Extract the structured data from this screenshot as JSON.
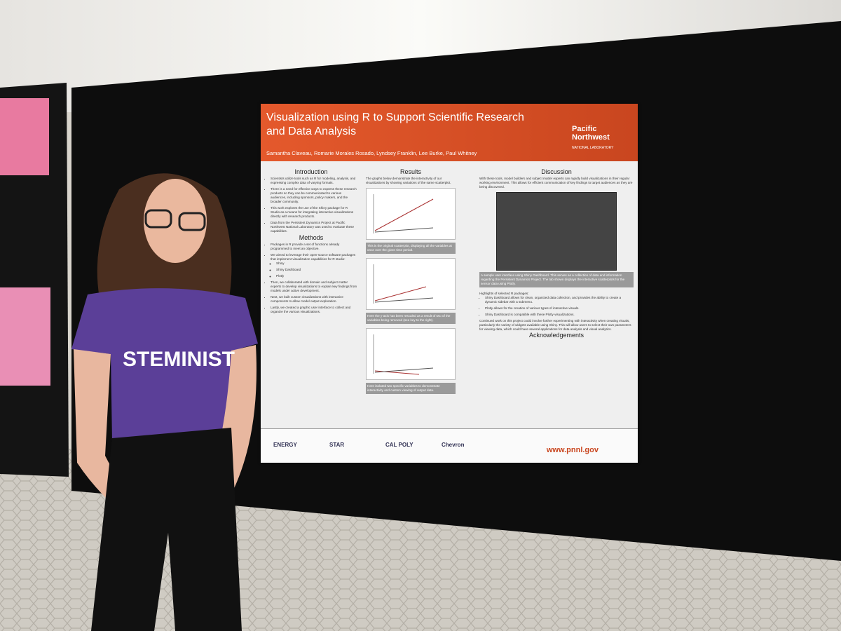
{
  "poster": {
    "title": "Visualization using R to Support Scientific Research and Data Analysis",
    "authors": "Samantha Claveau, Romarie Morales Rosado, Lyndsey Franklin, Lee Burke, Paul Whitney",
    "logo": {
      "name": "Pacific Northwest",
      "subtitle": "NATIONAL LABORATORY"
    },
    "introduction": {
      "heading": "Introduction",
      "bullets": [
        {
          "text": "Scientists utilize tools such as R for modeling, analysis, and expressing complex data of varying formats."
        },
        {
          "text": "There is a need for effective ways to express these research products so they can be communicated to various audiences, including sponsors, policy makers, and the broader community."
        },
        {
          "text": "This work explores the use of the Shiny package for R Studio as a means for integrating interactive visualizations directly with research products."
        },
        {
          "text": "Data from the Persistent Dynamics Project at Pacific Northwest National Laboratory was used to evaluate these capabilities."
        }
      ]
    },
    "methods": {
      "heading": "Methods",
      "bullets": [
        {
          "text": "Packages in R provide a set of functions already programmed to meet an objective."
        },
        {
          "text": "We aimed to leverage their open-source software packages that implement visualization capabilities for R studio:",
          "sub": [
            "Shiny",
            "Shiny Dashboard",
            "Plotly"
          ]
        },
        {
          "text": "Then, we collaborated with domain and subject matter experts to develop visualizations to explain key findings from models under active development."
        },
        {
          "text": "Next, we built custom visualizations with interactive components to allow model output exploration."
        },
        {
          "text": "Lastly, we created a graphic user interface to collect and organize the various visualizations."
        }
      ]
    },
    "results": {
      "heading": "Results",
      "intro": "The graphs below demonstrate the interactivity of our visualizations by showing variations of the same scatterplot.",
      "captions": [
        "This is the original scatterplot, displaying all the variables at once over the given time period.",
        "Here the y-axis has been rescaled as a result of two of the variables being removed (see key to the right).",
        "Here isolated two specific variables to demonstrate interactivity and custom viewing of output data."
      ]
    },
    "discussion": {
      "heading": "Discussion",
      "intro": "With these tools, model builders and subject matter experts can rapidly build visualizations in their regular working environment. This allows for efficient communication of key findings to target audiences as they are being discovered.",
      "figure_caption": "A sample user interface using Shiny Dashboard. This serves as a collection of data and information regarding the Persistent Dynamics Project. The tab shown displays the interactive scatterplots for the sensor data using Plotly.",
      "highlights_heading": "Highlights of selected R packages:",
      "highlights": [
        "Shiny Dashboard allows for clean, organized data collection, and provides the ability to create a dynamic sidebar with a submenu.",
        "Plotly allows for the creation of various types of interactive visuals.",
        "Shiny Dashboard is compatible with these Plotly visualizations."
      ],
      "conclusion": "Continued work on this project could involve further experimenting with interactivity when creating visuals, particularly the variety of widgets available using Shiny. This will allow users to select their own parameters for viewing data, which could have several applications for data analysis and visual analytics."
    },
    "acknowledgements": {
      "heading": "Acknowledgements"
    },
    "footer": {
      "sponsors": [
        "ENERGY",
        "STAR",
        "CAL POLY",
        "Chevron"
      ],
      "url": "www.pnnl.gov"
    }
  },
  "shirt": {
    "text": "STEMINIST"
  }
}
